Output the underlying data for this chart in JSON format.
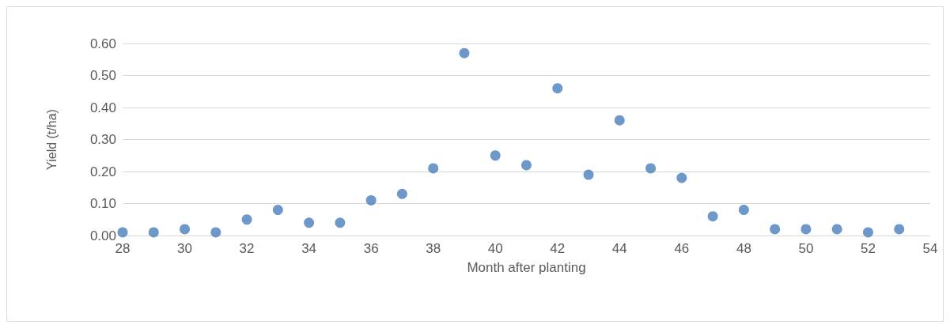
{
  "chart_data": {
    "type": "scatter",
    "xlabel": "Month after planting",
    "ylabel": "Yield (t/ha)",
    "x": [
      28,
      29,
      30,
      31,
      32,
      33,
      34,
      35,
      36,
      37,
      38,
      39,
      40,
      41,
      42,
      43,
      44,
      45,
      46,
      47,
      48,
      49,
      50,
      51,
      52,
      53
    ],
    "series": [
      {
        "color": "#4a7ebb",
        "values": [
          0.01,
          0.01,
          0.02,
          0.01,
          0.05,
          0.08,
          0.04,
          0.04,
          0.11,
          0.13,
          0.21,
          0.57,
          0.25,
          0.22,
          0.46,
          0.19,
          0.36,
          0.21,
          0.18,
          0.06,
          0.08,
          0.02,
          0.02,
          0.02,
          0.01,
          0.02
        ]
      }
    ],
    "xlim": [
      28,
      54
    ],
    "xticks": [
      28,
      30,
      32,
      34,
      36,
      38,
      40,
      42,
      44,
      46,
      48,
      50,
      52,
      54
    ],
    "ylim": [
      0,
      0.6
    ],
    "yticks": [
      {
        "value": 0,
        "label": "0.00"
      },
      {
        "value": 0.1,
        "label": "0.10"
      },
      {
        "value": 0.2,
        "label": "0.20"
      },
      {
        "value": 0.3,
        "label": "0.30"
      },
      {
        "value": 0.4,
        "label": "0.40"
      },
      {
        "value": 0.5,
        "label": "0.50"
      },
      {
        "value": 0.6,
        "label": "0.60"
      }
    ],
    "grid": "y",
    "marker": "circle"
  }
}
